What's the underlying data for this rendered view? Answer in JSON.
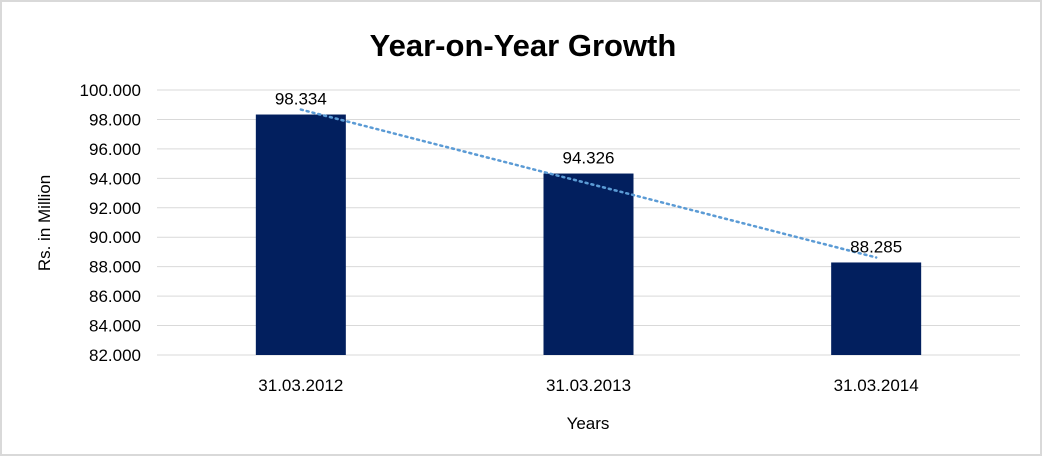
{
  "chart_data": {
    "type": "bar",
    "title": "Year-on-Year Growth",
    "xlabel": "Years",
    "ylabel": "Rs. in Million",
    "categories": [
      "31.03.2012",
      "31.03.2013",
      "31.03.2014"
    ],
    "values": [
      98.334,
      94.326,
      88.285
    ],
    "data_labels": [
      "98.334",
      "94.326",
      "88.285"
    ],
    "ylim": [
      82,
      100
    ],
    "yticks": [
      "82.000",
      "84.000",
      "86.000",
      "88.000",
      "90.000",
      "92.000",
      "94.000",
      "96.000",
      "98.000",
      "100.000"
    ],
    "grid": true,
    "trendline": {
      "type": "linear",
      "style": "dotted",
      "color": "#5b9bd5"
    },
    "bar_color": "#021f5e",
    "legend": "none"
  }
}
